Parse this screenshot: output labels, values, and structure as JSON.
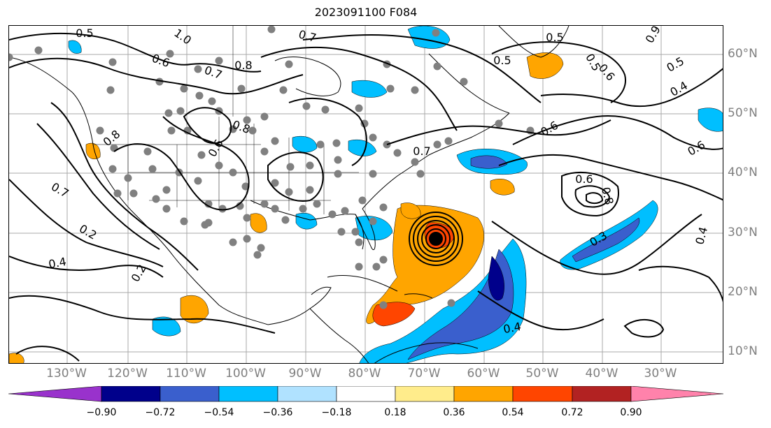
{
  "title": "2023091100 F084",
  "longitude_labels": [
    "130°W",
    "120°W",
    "110°W",
    "100°W",
    "90°W",
    "80°W",
    "70°W",
    "60°W",
    "50°W",
    "40°W",
    "30°W"
  ],
  "latitude_labels": [
    "60°N",
    "50°N",
    "40°N",
    "30°N",
    "20°N",
    "10°N"
  ],
  "contour_labels": [
    "0.5",
    "1.0",
    "0.6",
    "0.7",
    "0.8",
    "0.8",
    "0.8",
    "0.7",
    "0.6",
    "0.4",
    "0.2",
    "0.7",
    "0.5",
    "0.5",
    "0.7",
    "0.5",
    "0.6",
    "0.5",
    "0.4",
    "0.6",
    "0.6",
    "0.6",
    "0.8",
    "0.3",
    "0.4",
    "0.2",
    "0.4",
    "0.9"
  ],
  "colorbar": {
    "ticks": [
      "−0.90",
      "−0.72",
      "−0.54",
      "−0.36",
      "−0.18",
      "0.18",
      "0.36",
      "0.54",
      "0.72",
      "0.90"
    ],
    "colors": [
      "#9932cc",
      "#00008b",
      "#3a5fcd",
      "#00bfff",
      "#b0e2ff",
      "#ffffff",
      "#ffec8b",
      "#ffa500",
      "#ff4500",
      "#b22222",
      "#ff82ab"
    ]
  },
  "anomaly_colors": {
    "positive_weak": "#ffa500",
    "positive_mid": "#ff4500",
    "negative_weak": "#00bfff",
    "negative_mid": "#3a5fcd",
    "negative_strong": "#00008b",
    "station_dot": "#808080"
  }
}
